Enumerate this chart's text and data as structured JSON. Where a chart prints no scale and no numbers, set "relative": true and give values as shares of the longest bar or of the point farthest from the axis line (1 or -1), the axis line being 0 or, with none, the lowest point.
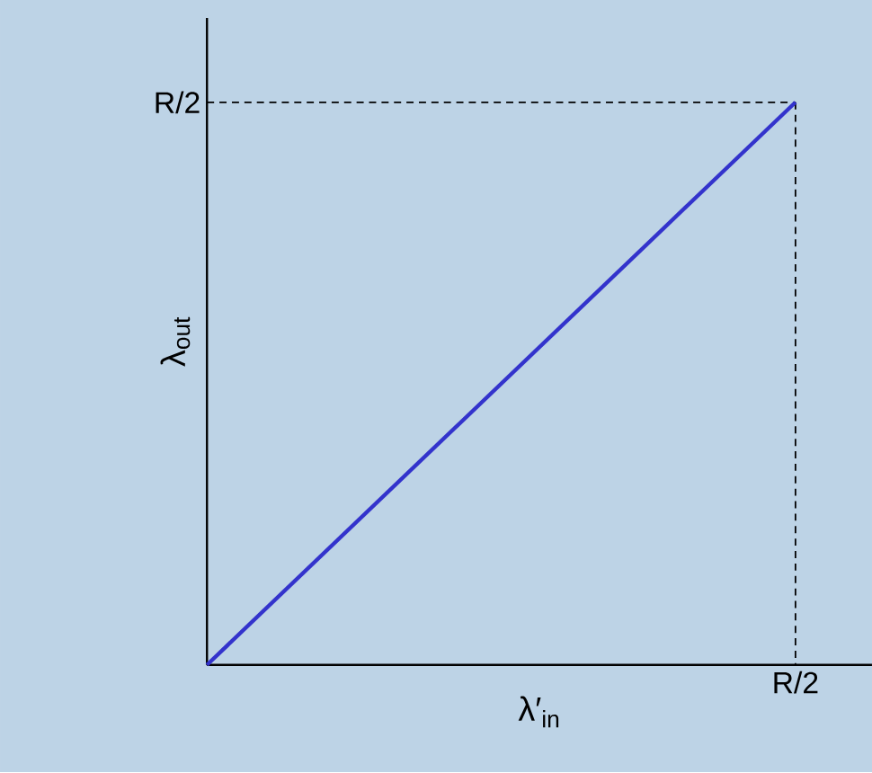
{
  "chart_data": {
    "type": "line",
    "xlabel": "λ′$_{in}$",
    "ylabel": "λ$_{out}$",
    "relative": true,
    "categories": [
      null,
      null
    ],
    "series": [
      {
        "color": "#3333cc",
        "values": [
          0,
          1
        ]
      }
    ],
    "annotations": [
      "R/2",
      "R/2"
    ],
    "ref_lines": [
      {
        "axis": "y",
        "value": 1,
        "color": "#000000",
        "line_style": "dashed"
      }
    ],
    "line_style": "solid",
    "marker": "none"
  }
}
